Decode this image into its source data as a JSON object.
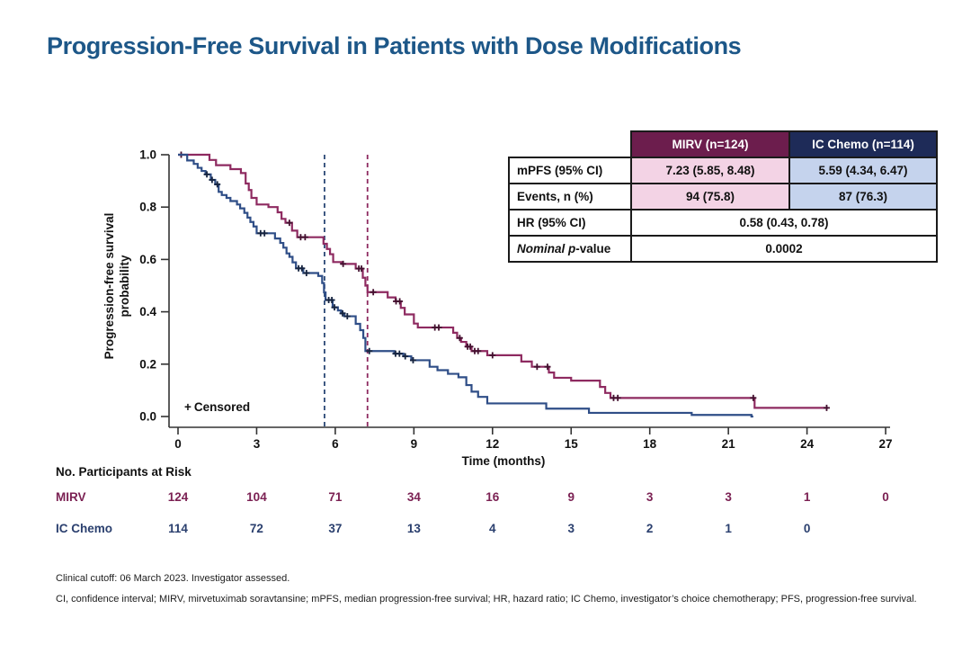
{
  "title": "Progression-Free Survival in Patients with Dose Modifications",
  "colors": {
    "title_blue": "#1D5788",
    "mirv_curve": "#8E2A60",
    "mirv_dark": "#6C1D4D",
    "mirv_censor": "#43102F",
    "ic_curve": "#2F4E87",
    "ic_dark": "#1E2B58",
    "ic_censor": "#16243F",
    "pink_bg": "#F3D3E5",
    "lightblue_bg": "#C5D3ED",
    "axis": "#333333"
  },
  "stats_table": {
    "col_headers": {
      "mirv": "MIRV (n=124)",
      "ic": "IC Chemo (n=114)"
    },
    "rows": {
      "mpfs": {
        "label": "mPFS (95% CI)",
        "mirv": "7.23 (5.85, 8.48)",
        "ic": "5.59 (4.34, 6.47)"
      },
      "events": {
        "label": "Events, n (%)",
        "mirv": "94 (75.8)",
        "ic": "87 (76.3)"
      },
      "hr": {
        "label": "HR (95% CI)",
        "combined": "0.58 (0.43, 0.78)"
      },
      "pval": {
        "label_italic": "Nominal p",
        "label_rest": "-value",
        "combined": "0.0002"
      }
    }
  },
  "chart_data": {
    "type": "line",
    "subtype": "kaplan-meier-step",
    "xlabel": "Time (months)",
    "ylabel_line1": "Progression-free survival",
    "ylabel_line2": "probability",
    "censored_label_plus": "+",
    "censored_label_text": "Censored",
    "xlim": [
      0,
      27
    ],
    "xticks": [
      0,
      3,
      6,
      9,
      12,
      15,
      18,
      21,
      24,
      27
    ],
    "ylim": [
      0,
      1
    ],
    "yticks": [
      "0.0",
      "0.2",
      "0.4",
      "0.6",
      "0.8",
      "1.0"
    ],
    "grid": false,
    "medians": [
      {
        "series": "MIRV",
        "x": 7.23,
        "color": "#8E2A60"
      },
      {
        "series": "IC Chemo",
        "x": 5.59,
        "color": "#2B4876"
      }
    ],
    "series": [
      {
        "name": "MIRV",
        "color": "#8E2A60",
        "censor_color": "#43102F",
        "end": 24.8,
        "steps": [
          [
            0,
            1.0
          ],
          [
            1.2,
            0.98
          ],
          [
            1.45,
            0.96
          ],
          [
            2.0,
            0.945
          ],
          [
            2.4,
            0.93
          ],
          [
            2.58,
            0.89
          ],
          [
            2.7,
            0.865
          ],
          [
            2.8,
            0.835
          ],
          [
            3.0,
            0.81
          ],
          [
            3.45,
            0.8
          ],
          [
            3.8,
            0.78
          ],
          [
            3.95,
            0.755
          ],
          [
            4.1,
            0.74
          ],
          [
            4.35,
            0.71
          ],
          [
            4.55,
            0.685
          ],
          [
            5.55,
            0.66
          ],
          [
            5.68,
            0.64
          ],
          [
            5.8,
            0.62
          ],
          [
            5.92,
            0.59
          ],
          [
            6.25,
            0.583
          ],
          [
            6.78,
            0.565
          ],
          [
            7.05,
            0.53
          ],
          [
            7.15,
            0.5
          ],
          [
            7.23,
            0.475
          ],
          [
            8.0,
            0.455
          ],
          [
            8.3,
            0.44
          ],
          [
            8.5,
            0.415
          ],
          [
            8.65,
            0.39
          ],
          [
            9.0,
            0.355
          ],
          [
            9.15,
            0.34
          ],
          [
            10.5,
            0.32
          ],
          [
            10.65,
            0.3
          ],
          [
            10.8,
            0.285
          ],
          [
            11.0,
            0.267
          ],
          [
            11.2,
            0.25
          ],
          [
            11.8,
            0.234
          ],
          [
            13.1,
            0.21
          ],
          [
            13.5,
            0.19
          ],
          [
            14.15,
            0.168
          ],
          [
            14.35,
            0.148
          ],
          [
            15.0,
            0.137
          ],
          [
            16.1,
            0.113
          ],
          [
            16.3,
            0.09
          ],
          [
            16.5,
            0.071
          ],
          [
            22.0,
            0.033
          ]
        ],
        "censors": [
          [
            0.12,
            1.0
          ],
          [
            4.25,
            0.74
          ],
          [
            4.68,
            0.685
          ],
          [
            4.85,
            0.685
          ],
          [
            6.3,
            0.583
          ],
          [
            6.9,
            0.565
          ],
          [
            7.0,
            0.565
          ],
          [
            7.45,
            0.475
          ],
          [
            8.32,
            0.44
          ],
          [
            8.46,
            0.44
          ],
          [
            9.8,
            0.34
          ],
          [
            9.95,
            0.34
          ],
          [
            10.75,
            0.3
          ],
          [
            11.05,
            0.267
          ],
          [
            11.15,
            0.267
          ],
          [
            11.32,
            0.25
          ],
          [
            11.45,
            0.25
          ],
          [
            12.0,
            0.234
          ],
          [
            13.7,
            0.19
          ],
          [
            14.1,
            0.19
          ],
          [
            16.62,
            0.071
          ],
          [
            16.78,
            0.071
          ],
          [
            21.95,
            0.071
          ],
          [
            24.75,
            0.033
          ]
        ]
      },
      {
        "name": "IC Chemo",
        "color": "#2F4E87",
        "censor_color": "#16243F",
        "end": 21.95,
        "steps": [
          [
            0,
            1.0
          ],
          [
            0.35,
            0.978
          ],
          [
            0.6,
            0.965
          ],
          [
            0.75,
            0.95
          ],
          [
            0.9,
            0.938
          ],
          [
            1.05,
            0.925
          ],
          [
            1.25,
            0.904
          ],
          [
            1.42,
            0.887
          ],
          [
            1.55,
            0.858
          ],
          [
            1.67,
            0.846
          ],
          [
            1.85,
            0.835
          ],
          [
            2.0,
            0.823
          ],
          [
            2.25,
            0.81
          ],
          [
            2.37,
            0.795
          ],
          [
            2.53,
            0.778
          ],
          [
            2.65,
            0.76
          ],
          [
            2.76,
            0.743
          ],
          [
            2.88,
            0.726
          ],
          [
            3.0,
            0.7
          ],
          [
            3.7,
            0.68
          ],
          [
            3.9,
            0.663
          ],
          [
            4.02,
            0.645
          ],
          [
            4.14,
            0.623
          ],
          [
            4.25,
            0.61
          ],
          [
            4.37,
            0.589
          ],
          [
            4.5,
            0.566
          ],
          [
            4.78,
            0.548
          ],
          [
            5.35,
            0.537
          ],
          [
            5.5,
            0.51
          ],
          [
            5.57,
            0.474
          ],
          [
            5.63,
            0.445
          ],
          [
            5.9,
            0.417
          ],
          [
            6.1,
            0.405
          ],
          [
            6.22,
            0.394
          ],
          [
            6.35,
            0.383
          ],
          [
            6.78,
            0.354
          ],
          [
            6.95,
            0.33
          ],
          [
            7.07,
            0.3
          ],
          [
            7.15,
            0.25
          ],
          [
            8.25,
            0.24
          ],
          [
            8.6,
            0.23
          ],
          [
            8.9,
            0.215
          ],
          [
            9.6,
            0.19
          ],
          [
            9.9,
            0.177
          ],
          [
            10.3,
            0.163
          ],
          [
            10.7,
            0.15
          ],
          [
            11.0,
            0.12
          ],
          [
            11.2,
            0.095
          ],
          [
            11.45,
            0.075
          ],
          [
            11.8,
            0.05
          ],
          [
            14.05,
            0.03
          ],
          [
            15.68,
            0.014
          ],
          [
            19.6,
            0.006
          ],
          [
            21.88,
            0.0
          ]
        ],
        "censors": [
          [
            1.1,
            0.925
          ],
          [
            1.3,
            0.904
          ],
          [
            1.5,
            0.887
          ],
          [
            3.15,
            0.7
          ],
          [
            3.3,
            0.7
          ],
          [
            4.6,
            0.566
          ],
          [
            4.73,
            0.566
          ],
          [
            4.9,
            0.548
          ],
          [
            5.75,
            0.445
          ],
          [
            5.87,
            0.445
          ],
          [
            5.97,
            0.417
          ],
          [
            6.28,
            0.394
          ],
          [
            6.46,
            0.383
          ],
          [
            7.3,
            0.25
          ],
          [
            8.3,
            0.24
          ],
          [
            8.45,
            0.24
          ],
          [
            8.67,
            0.23
          ],
          [
            8.97,
            0.215
          ]
        ]
      }
    ]
  },
  "risk_table": {
    "title": "No. Participants at Risk",
    "times": [
      0,
      3,
      6,
      9,
      12,
      15,
      18,
      21,
      24,
      27
    ],
    "rows": [
      {
        "label": "MIRV",
        "color": "#7B2153",
        "values": [
          "124",
          "104",
          "71",
          "34",
          "16",
          "9",
          "3",
          "3",
          "1",
          "0"
        ]
      },
      {
        "label": "IC Chemo",
        "color": "#2A3F6E",
        "values": [
          "114",
          "72",
          "37",
          "13",
          "4",
          "3",
          "2",
          "1",
          "0"
        ]
      }
    ]
  },
  "footnotes": {
    "line1": "Clinical cutoff: 06 March 2023. Investigator assessed.",
    "line2": "CI, confidence interval; MIRV, mirvetuximab soravtansine; mPFS, median progression-free survival; HR, hazard ratio; IC Chemo, investigator’s choice chemotherapy; PFS, progression-free survival."
  }
}
